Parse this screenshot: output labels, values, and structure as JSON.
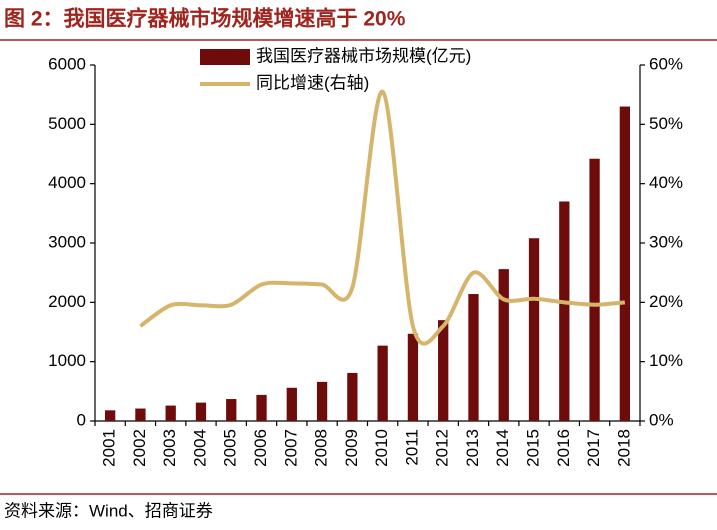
{
  "chart_data": {
    "type": "bar-line",
    "title": "图 2：我国医疗器械市场规模增速高于 20%",
    "source": "资料来源：Wind、招商证券",
    "categories": [
      "2001",
      "2002",
      "2003",
      "2004",
      "2005",
      "2006",
      "2007",
      "2008",
      "2009",
      "2010",
      "2011",
      "2012",
      "2013",
      "2014",
      "2015",
      "2016",
      "2017",
      "2018"
    ],
    "series": [
      {
        "name": "我国医疗器械市场规模(亿元)",
        "type": "bar",
        "color": "#6e0c0c",
        "values": [
          180,
          210,
          260,
          310,
          370,
          440,
          560,
          660,
          810,
          1270,
          1470,
          1700,
          2140,
          2560,
          3080,
          3700,
          4420,
          5300
        ]
      },
      {
        "name": "同比增速(右轴)",
        "type": "line",
        "axis": "y2",
        "color": "#d5b56b",
        "values": [
          null,
          16,
          19.5,
          19.5,
          19.6,
          23,
          23.2,
          23,
          22.5,
          55.5,
          16,
          16,
          25,
          20.5,
          20.6,
          20,
          19.6,
          20
        ]
      }
    ],
    "ylim": [
      0,
      6000
    ],
    "yticks": [
      0,
      1000,
      2000,
      3000,
      4000,
      5000,
      6000
    ],
    "y2lim": [
      0,
      60
    ],
    "y2ticks": [
      {
        "value": 0,
        "label": "0%"
      },
      {
        "value": 10,
        "label": "10%"
      },
      {
        "value": 20,
        "label": "20%"
      },
      {
        "value": 30,
        "label": "30%"
      },
      {
        "value": 40,
        "label": "40%"
      },
      {
        "value": 50,
        "label": "50%"
      },
      {
        "value": 60,
        "label": "60%"
      }
    ],
    "grid": false,
    "legend": "top"
  }
}
